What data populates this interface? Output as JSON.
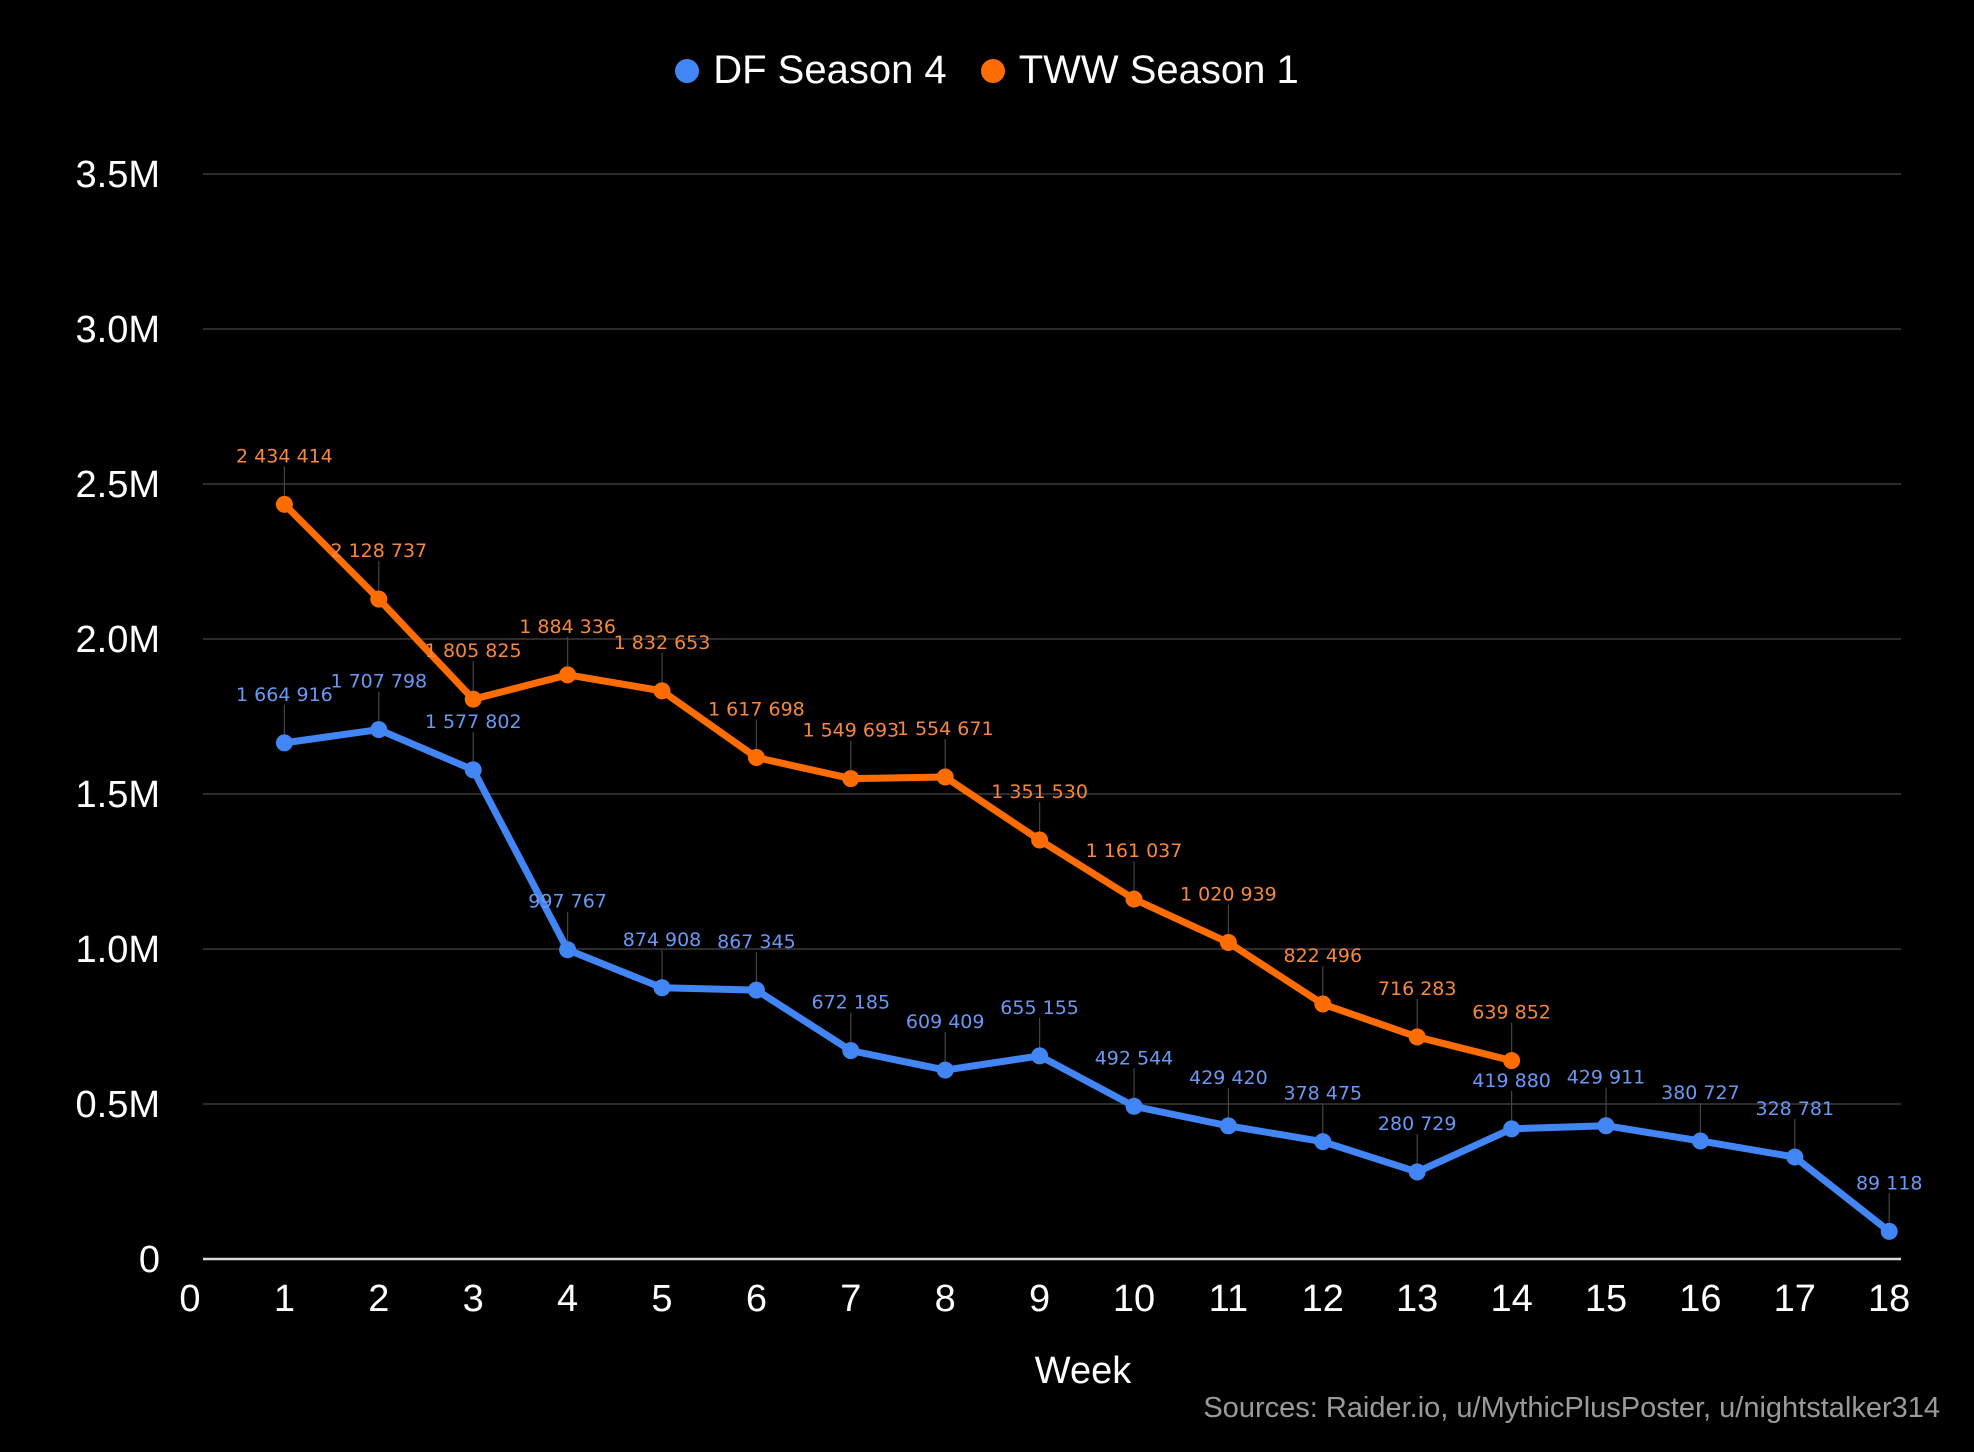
{
  "chart_data": {
    "type": "line",
    "title": "",
    "xlabel": "Week",
    "ylabel": "",
    "x": [
      1,
      2,
      3,
      4,
      5,
      6,
      7,
      8,
      9,
      10,
      11,
      12,
      13,
      14,
      15,
      16,
      17,
      18
    ],
    "xlim": [
      0,
      18
    ],
    "ylim": [
      0,
      3500000
    ],
    "x_ticks": [
      "0",
      "1",
      "2",
      "3",
      "4",
      "5",
      "6",
      "7",
      "8",
      "9",
      "10",
      "11",
      "12",
      "13",
      "14",
      "15",
      "16",
      "17",
      "18"
    ],
    "y_ticks": [
      {
        "value": 0,
        "label": "0"
      },
      {
        "value": 500000,
        "label": "0.5M"
      },
      {
        "value": 1000000,
        "label": "1.0M"
      },
      {
        "value": 1500000,
        "label": "1.5M"
      },
      {
        "value": 2000000,
        "label": "2.0M"
      },
      {
        "value": 2500000,
        "label": "2.5M"
      },
      {
        "value": 3000000,
        "label": "3.0M"
      },
      {
        "value": 3500000,
        "label": "3.5M"
      }
    ],
    "grid": true,
    "legend_position": "top-center",
    "series": [
      {
        "name": "DF Season 4",
        "color": "#4285F4",
        "label_color": "#6A98F2",
        "x": [
          1,
          2,
          3,
          4,
          5,
          6,
          7,
          8,
          9,
          10,
          11,
          12,
          13,
          14,
          15,
          16,
          17,
          18
        ],
        "values": [
          1664916,
          1707798,
          1577802,
          997767,
          874908,
          867345,
          672185,
          609409,
          655155,
          492544,
          429420,
          378475,
          280729,
          419880,
          429911,
          380727,
          328781,
          89118
        ],
        "labels": [
          "1 664 916",
          "1 707 798",
          "1 577 802",
          "997 767",
          "874 908",
          "867 345",
          "672 185",
          "609 409",
          "655 155",
          "492 544",
          "429 420",
          "378 475",
          "280 729",
          "419 880",
          "429 911",
          "380 727",
          "328 781",
          "89 118"
        ]
      },
      {
        "name": "TWW Season 1",
        "color": "#FF6D01",
        "label_color": "#F5883A",
        "x": [
          1,
          2,
          3,
          4,
          5,
          6,
          7,
          8,
          9,
          10,
          11,
          12,
          13,
          14
        ],
        "values": [
          2434414,
          2128737,
          1805825,
          1884336,
          1832653,
          1617698,
          1549693,
          1554671,
          1351530,
          1161037,
          1020939,
          822496,
          716283,
          639852
        ],
        "labels": [
          "2 434 414",
          "2 128 737",
          "1 805 825",
          "1 884 336",
          "1 832 653",
          "1 617 698",
          "1 549 693",
          "1 554 671",
          "1 351 530",
          "1 161 037",
          "1 020 939",
          "822 496",
          "716 283",
          "639 852"
        ]
      }
    ],
    "source": "Sources: Raider.io, u/MythicPlusPoster, u/nightstalker314"
  }
}
